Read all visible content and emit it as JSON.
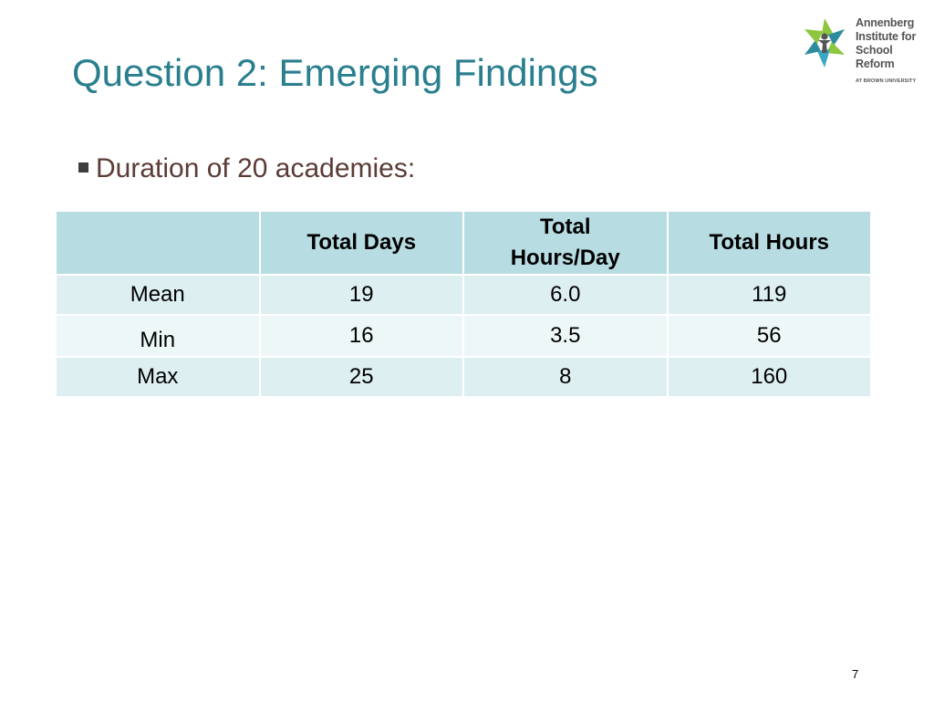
{
  "slide": {
    "title": "Question 2: Emerging Findings",
    "bullet": "Duration of 20 academies:",
    "page_number": "7"
  },
  "logo": {
    "lines": [
      "Annenberg",
      "Institute for",
      "School Reform"
    ],
    "subtitle": "AT BROWN UNIVERSITY",
    "icon": "annenberg-pinwheel-icon",
    "colors": {
      "green": "#8dc63f",
      "teal": "#2d8c9e",
      "blue": "#3aa7c5"
    }
  },
  "table": {
    "headers": [
      "",
      "Total Days",
      "Total Hours/Day",
      "Total Hours"
    ],
    "header_lines": {
      "hours_per_day": [
        "Total",
        "Hours/Day"
      ]
    },
    "rows": [
      {
        "label": "Mean",
        "days": "19",
        "hours_per_day": "6.0",
        "hours": "119"
      },
      {
        "label": "Min",
        "days": "16",
        "hours_per_day": "3.5",
        "hours": "56"
      },
      {
        "label": "Max",
        "days": "25",
        "hours_per_day": "8",
        "hours": "160"
      }
    ]
  },
  "colors": {
    "title": "#2a7f8f",
    "bullet_text": "#5b3b36",
    "header_bg": "#b7dde3",
    "row_bg_dark": "#deeff2",
    "row_bg_light": "#eef7f8"
  }
}
